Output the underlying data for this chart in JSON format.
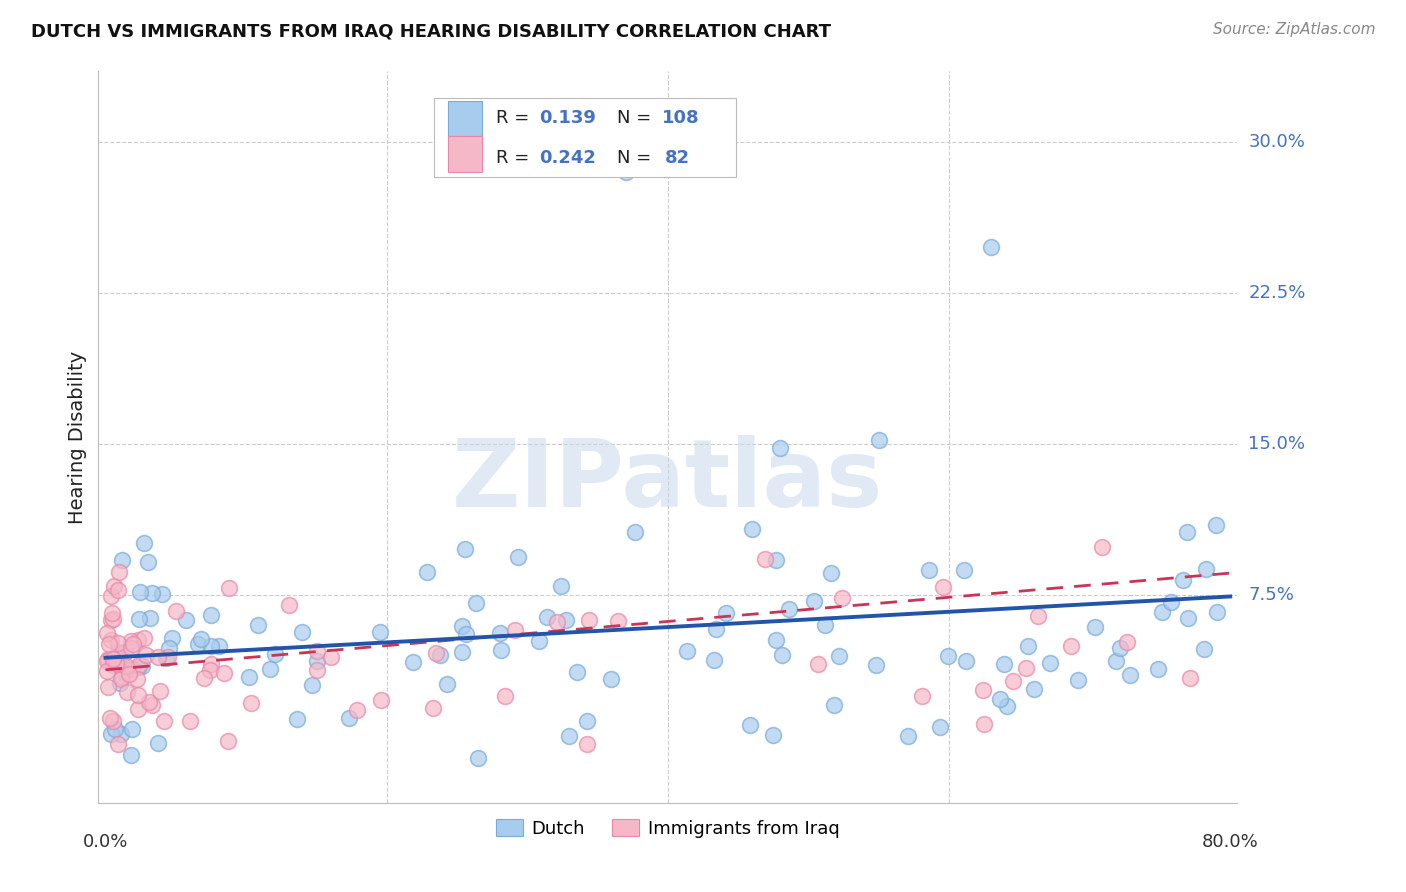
{
  "title": "DUTCH VS IMMIGRANTS FROM IRAQ HEARING DISABILITY CORRELATION CHART",
  "source": "Source: ZipAtlas.com",
  "ylabel": "Hearing Disability",
  "watermark": "ZIPatlas",
  "dutch_R": 0.139,
  "dutch_N": 108,
  "iraq_R": 0.242,
  "iraq_N": 82,
  "xlim": [
    0.0,
    0.8
  ],
  "ylim_low": -0.028,
  "ylim_high": 0.335,
  "ytick_vals": [
    0.075,
    0.15,
    0.225,
    0.3
  ],
  "ytick_labels": [
    "7.5%",
    "15.0%",
    "22.5%",
    "30.0%"
  ],
  "dutch_face_color": "#A8CCEE",
  "dutch_edge_color": "#7AAAD8",
  "iraq_face_color": "#F4B8C8",
  "iraq_edge_color": "#E888A8",
  "dutch_line_color": "#2255AA",
  "iraq_line_color": "#CC3355",
  "grid_color": "#CCCCCC",
  "background_color": "#FFFFFF",
  "legend_blue": "#4472C4",
  "legend_text_color": "#222222"
}
